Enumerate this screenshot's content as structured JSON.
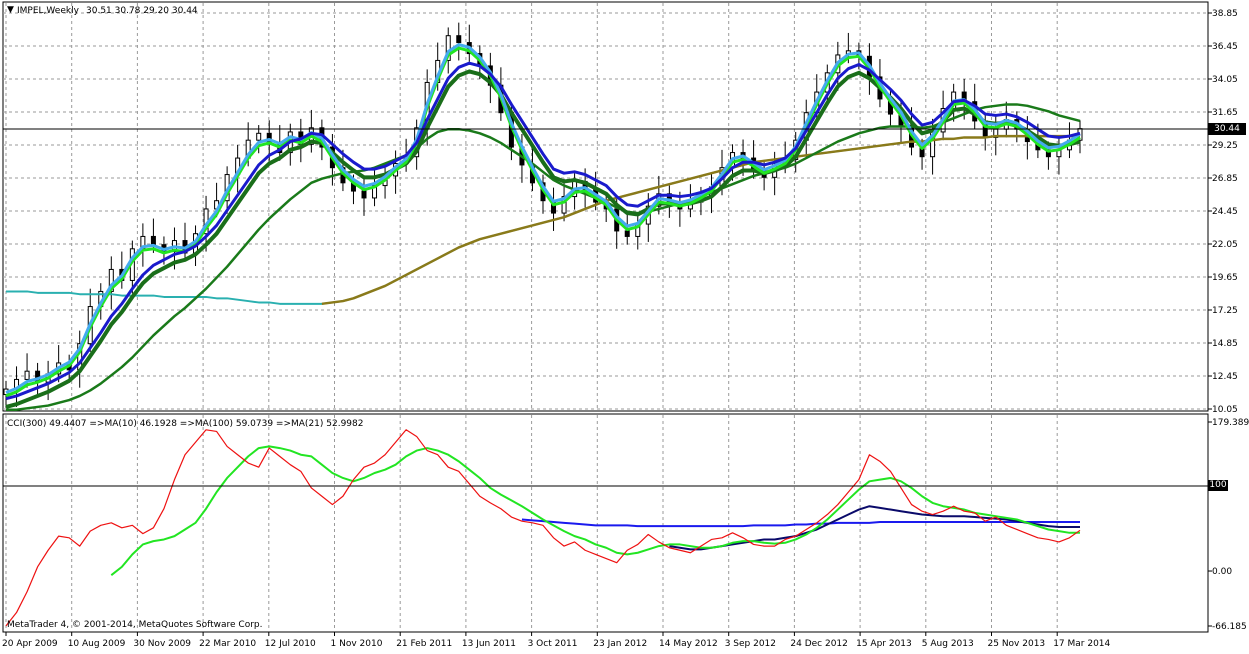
{
  "window": {
    "title": "IMPEL,Weekly",
    "ohlc": "30.51 30.78 29.20 30.44"
  },
  "indicator_label": "CCI(300) 49.4407  =>MA(10) 46.1928  =>MA(100) 59.0739  =>MA(21) 52.9982",
  "copyright": "MetaTrader 4, © 2001-2014, MetaQuotes Software Corp.",
  "current_price": "30.44",
  "cci_level": "100",
  "colors": {
    "background": "#ffffff",
    "grid": "#9a9a9a",
    "candle": "#000000",
    "ma_fast": "#22e522",
    "ma_mid": "#1a6e1a",
    "ma_slow_fast": "#1a7a1a",
    "ma_long": "#8a7a1a",
    "ma_long_teal": "#2ab0b0",
    "ma_blue": "#1a1acc",
    "ma_lightblue": "#44aaee",
    "ma_navy": "#0a0a6a",
    "cci": "#ee1111",
    "cci_ma10": "#22e522",
    "cci_ma21": "#0a0a6a",
    "cci_ma100": "#1a1aee"
  },
  "chart_data": [
    {
      "type": "candlestick",
      "title": "IMPEL,Weekly",
      "y_ticks": [
        "38.85",
        "36.45",
        "34.05",
        "31.65",
        "29.25",
        "26.85",
        "24.45",
        "22.05",
        "19.65",
        "17.25",
        "14.85",
        "12.45",
        "10.05"
      ],
      "ylim": [
        10.05,
        38.85
      ],
      "x_ticks": [
        "20 Apr 2009",
        "10 Aug 2009",
        "30 Nov 2009",
        "22 Mar 2010",
        "12 Jul 2010",
        "1 Nov 2010",
        "21 Feb 2011",
        "13 Jun 2011",
        "3 Oct 2011",
        "23 Jan 2012",
        "14 May 2012",
        "3 Sep 2012",
        "24 Dec 2012",
        "15 Apr 2013",
        "5 Aug 2013",
        "25 Nov 2013",
        "17 Mar 2014"
      ],
      "grid": true,
      "close": [
        11.5,
        12.2,
        12.8,
        12.0,
        12.6,
        13.4,
        12.9,
        14.8,
        17.5,
        18.6,
        20.2,
        19.4,
        21.7,
        22.6,
        22.0,
        21.5,
        22.3,
        21.4,
        22.8,
        24.6,
        25.2,
        27.1,
        28.3,
        29.6,
        30.1,
        29.4,
        28.7,
        30.2,
        29.3,
        30.5,
        29.1,
        27.6,
        26.5,
        25.9,
        25.4,
        26.3,
        27.0,
        27.9,
        28.4,
        30.5,
        33.8,
        35.4,
        37.2,
        36.7,
        35.9,
        35.0,
        33.6,
        31.6,
        29.1,
        27.8,
        26.5,
        25.2,
        24.3,
        25.5,
        26.6,
        26.0,
        25.1,
        24.6,
        23.0,
        22.6,
        23.5,
        24.8,
        25.7,
        24.9,
        24.6,
        25.1,
        25.6,
        26.2,
        27.6,
        28.7,
        28.3,
        27.4,
        26.9,
        27.8,
        28.2,
        29.6,
        31.6,
        33.1,
        34.5,
        35.8,
        36.1,
        35.7,
        34.2,
        32.6,
        31.5,
        30.7,
        29.1,
        28.4,
        30.2,
        31.9,
        33.1,
        32.4,
        31.0,
        29.8,
        30.4,
        31.1,
        30.4,
        29.5,
        28.9,
        28.4,
        28.9,
        29.6,
        30.44
      ],
      "ma_fast": [
        11.0,
        11.3,
        11.8,
        12.0,
        12.3,
        12.8,
        13.2,
        14.2,
        16.0,
        17.5,
        18.8,
        19.5,
        20.8,
        21.6,
        21.7,
        21.4,
        21.6,
        21.5,
        22.0,
        23.2,
        24.2,
        25.7,
        27.0,
        28.3,
        29.2,
        29.4,
        29.1,
        29.6,
        29.4,
        29.9,
        29.5,
        28.3,
        27.2,
        26.5,
        26.0,
        26.2,
        26.7,
        27.4,
        28.0,
        29.4,
        32.0,
        34.0,
        35.8,
        36.3,
        36.1,
        35.4,
        34.3,
        32.7,
        30.6,
        28.9,
        27.4,
        26.0,
        24.9,
        25.1,
        25.8,
        25.9,
        25.4,
        24.9,
        23.8,
        23.1,
        23.3,
        24.2,
        25.1,
        25.0,
        24.8,
        25.0,
        25.4,
        25.9,
        26.9,
        28.0,
        28.2,
        27.7,
        27.2,
        27.5,
        27.9,
        28.9,
        30.6,
        32.2,
        33.7,
        35.0,
        35.6,
        35.7,
        34.8,
        33.5,
        32.4,
        31.4,
        30.0,
        29.0,
        29.7,
        30.9,
        32.2,
        32.3,
        31.6,
        30.6,
        30.5,
        30.8,
        30.6,
        30.0,
        29.3,
        28.8,
        28.9,
        29.3,
        29.8
      ],
      "ma_mid": [
        10.2,
        10.4,
        10.7,
        11.0,
        11.3,
        11.7,
        12.1,
        12.8,
        13.9,
        15.0,
        16.2,
        17.1,
        18.2,
        19.2,
        19.9,
        20.3,
        20.7,
        20.9,
        21.3,
        22.0,
        22.8,
        23.9,
        25.0,
        26.1,
        27.2,
        27.9,
        28.3,
        28.9,
        29.1,
        29.5,
        29.4,
        28.7,
        28.0,
        27.4,
        26.9,
        26.9,
        27.1,
        27.5,
        27.9,
        28.8,
        30.5,
        32.0,
        33.5,
        34.3,
        34.6,
        34.4,
        33.8,
        32.9,
        31.6,
        30.4,
        29.2,
        28.0,
        26.9,
        26.6,
        26.7,
        26.5,
        26.1,
        25.7,
        24.9,
        24.3,
        24.2,
        24.6,
        25.0,
        25.0,
        24.9,
        25.0,
        25.2,
        25.5,
        26.2,
        27.0,
        27.4,
        27.4,
        27.2,
        27.4,
        27.7,
        28.4,
        29.7,
        31.0,
        32.3,
        33.5,
        34.2,
        34.5,
        34.1,
        33.4,
        32.7,
        31.9,
        30.9,
        30.1,
        30.3,
        31.0,
        31.8,
        31.9,
        31.5,
        30.9,
        30.8,
        30.9,
        30.7,
        30.3,
        29.8,
        29.3,
        29.2,
        29.3,
        29.5
      ],
      "ma_slow": [
        10.0,
        10.0,
        10.1,
        10.2,
        10.3,
        10.5,
        10.7,
        11.0,
        11.4,
        11.9,
        12.5,
        13.1,
        13.8,
        14.6,
        15.4,
        16.1,
        16.8,
        17.4,
        18.1,
        18.8,
        19.6,
        20.4,
        21.3,
        22.2,
        23.1,
        23.9,
        24.6,
        25.3,
        25.9,
        26.5,
        26.8,
        27.0,
        27.2,
        27.3,
        27.4,
        27.6,
        27.9,
        28.2,
        28.5,
        29.0,
        29.7,
        30.2,
        30.4,
        30.4,
        30.3,
        30.1,
        29.8,
        29.4,
        28.9,
        28.4,
        27.9,
        27.3,
        26.7,
        26.3,
        26.0,
        25.7,
        25.4,
        25.1,
        24.7,
        24.4,
        24.3,
        24.4,
        24.6,
        24.8,
        25.0,
        25.2,
        25.5,
        25.8,
        26.1,
        26.4,
        26.7,
        27.0,
        27.2,
        27.4,
        27.6,
        27.9,
        28.3,
        28.7,
        29.1,
        29.5,
        29.8,
        30.1,
        30.3,
        30.5,
        30.6,
        30.6,
        30.6,
        30.5,
        30.6,
        30.9,
        31.2,
        31.5,
        31.8,
        32.0,
        32.1,
        32.2,
        32.2,
        32.1,
        31.9,
        31.7,
        31.4,
        31.2,
        31.0
      ],
      "ma_long": [
        18.6,
        18.6,
        18.6,
        18.5,
        18.5,
        18.5,
        18.5,
        18.4,
        18.4,
        18.4,
        18.4,
        18.3,
        18.3,
        18.3,
        18.3,
        18.2,
        18.2,
        18.2,
        18.2,
        18.2,
        18.1,
        18.1,
        18.0,
        17.9,
        17.8,
        17.8,
        17.7,
        17.7,
        17.7,
        17.7,
        17.7,
        17.8,
        17.9,
        18.1,
        18.4,
        18.7,
        19.0,
        19.4,
        19.8,
        20.2,
        20.6,
        21.0,
        21.4,
        21.8,
        22.1,
        22.4,
        22.6,
        22.8,
        23.0,
        23.2,
        23.4,
        23.6,
        23.8,
        24.0,
        24.3,
        24.6,
        24.9,
        25.2,
        25.4,
        25.6,
        25.8,
        26.0,
        26.2,
        26.4,
        26.6,
        26.8,
        27.0,
        27.2,
        27.4,
        27.6,
        27.8,
        28.0,
        28.1,
        28.2,
        28.3,
        28.4,
        28.5,
        28.6,
        28.7,
        28.8,
        28.9,
        29.0,
        29.1,
        29.2,
        29.3,
        29.4,
        29.5,
        29.5,
        29.6,
        29.7,
        29.7,
        29.8,
        29.8,
        29.8,
        29.9,
        29.9,
        29.9,
        29.9,
        29.9,
        29.9,
        29.9,
        29.9,
        29.9
      ]
    },
    {
      "type": "line",
      "title": "CCI(300)",
      "y_ticks": [
        "179.3894",
        "100",
        "0.00",
        "-66.185"
      ],
      "ylim": [
        -66.185,
        179.3894
      ],
      "series": [
        {
          "name": "CCI(300)",
          "last": 49.4407
        },
        {
          "name": "MA(10)",
          "last": 46.1928
        },
        {
          "name": "MA(100)",
          "last": 59.0739
        },
        {
          "name": "MA(21)",
          "last": 52.9982
        }
      ],
      "cci": [
        -66,
        -50,
        -25,
        5,
        25,
        42,
        40,
        30,
        48,
        55,
        58,
        52,
        55,
        45,
        52,
        75,
        110,
        140,
        155,
        170,
        168,
        150,
        140,
        130,
        125,
        148,
        138,
        128,
        120,
        100,
        90,
        80,
        90,
        110,
        125,
        130,
        140,
        155,
        170,
        162,
        145,
        140,
        125,
        120,
        105,
        90,
        82,
        75,
        65,
        60,
        58,
        55,
        40,
        30,
        35,
        25,
        20,
        15,
        10,
        25,
        32,
        44,
        35,
        28,
        25,
        22,
        30,
        38,
        40,
        46,
        40,
        32,
        30,
        30,
        38,
        42,
        50,
        58,
        68,
        80,
        95,
        110,
        140,
        132,
        120,
        100,
        80,
        72,
        68,
        72,
        78,
        72,
        70,
        60,
        65,
        55,
        50,
        45,
        40,
        38,
        35,
        40,
        49
      ],
      "ma10": [
        null,
        null,
        null,
        null,
        null,
        null,
        null,
        null,
        null,
        null,
        -5,
        5,
        20,
        32,
        36,
        38,
        42,
        50,
        58,
        75,
        95,
        112,
        125,
        138,
        148,
        150,
        148,
        145,
        140,
        138,
        128,
        118,
        112,
        108,
        112,
        118,
        122,
        128,
        138,
        145,
        148,
        145,
        140,
        132,
        122,
        112,
        100,
        92,
        85,
        78,
        70,
        62,
        55,
        48,
        42,
        38,
        32,
        28,
        22,
        20,
        22,
        26,
        30,
        32,
        32,
        30,
        28,
        28,
        30,
        34,
        36,
        36,
        34,
        33,
        34,
        38,
        44,
        52,
        62,
        74,
        86,
        98,
        108,
        110,
        112,
        108,
        100,
        90,
        82,
        78,
        76,
        74,
        70,
        68,
        66,
        64,
        62,
        58,
        54,
        50,
        48,
        46,
        46
      ],
      "ma21": [
        null,
        null,
        null,
        null,
        null,
        null,
        null,
        null,
        null,
        null,
        null,
        null,
        null,
        null,
        null,
        null,
        null,
        null,
        null,
        null,
        null,
        null,
        null,
        null,
        null,
        null,
        null,
        null,
        null,
        null,
        null,
        null,
        null,
        null,
        null,
        null,
        null,
        null,
        null,
        null,
        null,
        null,
        null,
        null,
        null,
        null,
        null,
        null,
        null,
        null,
        null,
        null,
        null,
        null,
        null,
        null,
        null,
        null,
        null,
        null,
        null,
        null,
        null,
        30,
        28,
        26,
        26,
        28,
        30,
        32,
        34,
        36,
        38,
        38,
        40,
        42,
        46,
        50,
        56,
        62,
        68,
        74,
        78,
        76,
        74,
        72,
        70,
        68,
        67,
        66,
        66,
        66,
        65,
        64,
        63,
        62,
        60,
        58,
        56,
        54,
        53,
        53,
        53
      ],
      "ma100": [
        null,
        null,
        null,
        null,
        null,
        null,
        null,
        null,
        null,
        null,
        null,
        null,
        null,
        null,
        null,
        null,
        null,
        null,
        null,
        null,
        null,
        null,
        null,
        null,
        null,
        null,
        null,
        null,
        null,
        null,
        null,
        null,
        null,
        null,
        null,
        null,
        null,
        null,
        null,
        null,
        null,
        null,
        null,
        null,
        null,
        null,
        null,
        null,
        null,
        62,
        61,
        60,
        59,
        58,
        57,
        56,
        55,
        55,
        55,
        55,
        54,
        54,
        54,
        54,
        54,
        54,
        54,
        54,
        54,
        54,
        54,
        55,
        55,
        55,
        55,
        56,
        56,
        57,
        57,
        58,
        58,
        58,
        58,
        59,
        59,
        59,
        59,
        59,
        59,
        59,
        59,
        59,
        59,
        59,
        59,
        59,
        59,
        59,
        59,
        59,
        59,
        59,
        59
      ]
    }
  ]
}
